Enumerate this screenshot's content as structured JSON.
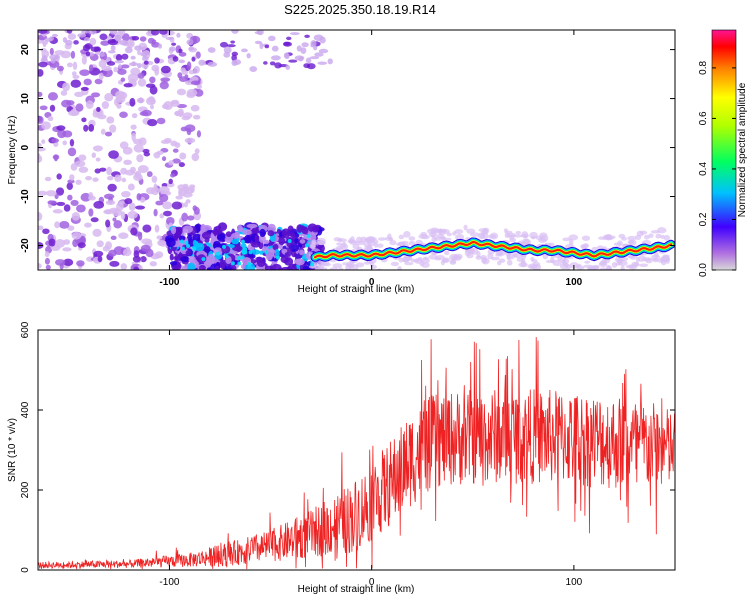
{
  "figure": {
    "title": "S225.2025.350.18.19.R14"
  },
  "chart_data": [
    {
      "type": "heatmap",
      "xlabel": "Height of straight line (km)",
      "ylabel": "Frequency (Hz)",
      "xlim": [
        -165,
        150
      ],
      "ylim": [
        -25,
        24
      ],
      "x_ticks": [
        "-100",
        "0",
        "100"
      ],
      "y_ticks": [
        "-20",
        "-10",
        "0",
        "10",
        "20"
      ],
      "colorbar": {
        "label": "Normalized spectral amplitude",
        "range": [
          0,
          0.95
        ],
        "ticks": [
          "0.0",
          "0.2",
          "0.4",
          "0.6",
          "0.8"
        ],
        "colormap": [
          "#cfcfcf",
          "#8a2be2",
          "#0000ff",
          "#00bfff",
          "#00ff66",
          "#aaff00",
          "#ffff00",
          "#ff8800",
          "#ff0000",
          "#ff1493"
        ]
      },
      "features": {
        "noise_region_x": [
          -165,
          -85
        ],
        "upper_noise_x": [
          -165,
          -20
        ],
        "lower_noise_x": [
          -100,
          -25
        ],
        "ridge": {
          "x": [
            -30,
            -20,
            -10,
            0,
            10,
            20,
            30,
            40,
            50,
            60,
            70,
            80,
            90,
            100,
            110,
            120,
            130,
            140,
            148
          ],
          "y": [
            -22.5,
            -22,
            -22,
            -22,
            -21.5,
            -21,
            -20.5,
            -20,
            -19.5,
            -20,
            -20.5,
            -21,
            -21,
            -21.5,
            -22,
            -21.5,
            -21,
            -20.5,
            -20
          ]
        }
      }
    },
    {
      "type": "line",
      "xlabel": "Height of straight line (km)",
      "ylabel": "SNR (10 * v/v)",
      "xlim": [
        -165,
        150
      ],
      "ylim": [
        0,
        600
      ],
      "x_ticks": [
        "-100",
        "0",
        "100"
      ],
      "y_ticks": [
        "0",
        "200",
        "400",
        "600"
      ],
      "color": "#ee2222",
      "envelope": {
        "x": [
          -165,
          -120,
          -90,
          -70,
          -50,
          -30,
          -10,
          0,
          10,
          20,
          30,
          40,
          60,
          80,
          100,
          120,
          140,
          150
        ],
        "base": [
          12,
          15,
          25,
          40,
          60,
          90,
          130,
          170,
          220,
          280,
          320,
          330,
          335,
          335,
          330,
          320,
          310,
          300
        ],
        "amp": [
          8,
          10,
          18,
          30,
          40,
          60,
          90,
          100,
          110,
          120,
          120,
          120,
          120,
          120,
          120,
          120,
          110,
          100
        ]
      }
    }
  ]
}
